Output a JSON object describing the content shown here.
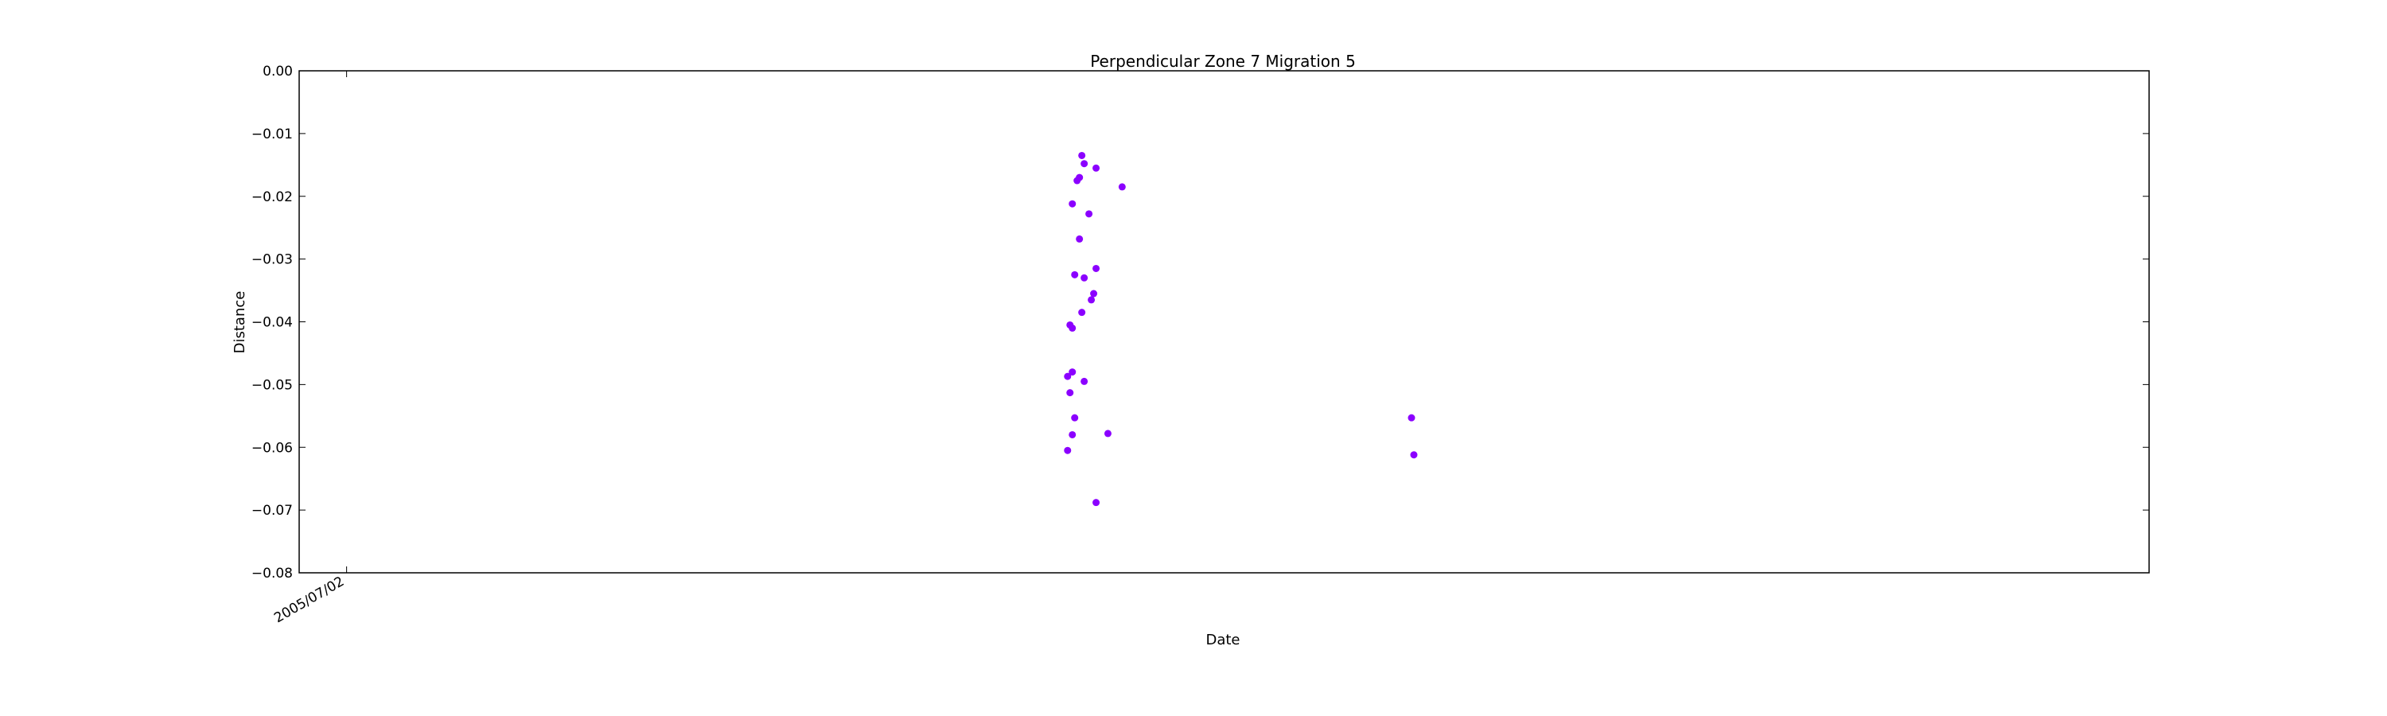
{
  "chart_data": {
    "type": "scatter",
    "title": "Perpendicular Zone 7 Migration 5",
    "xlabel": "Date",
    "ylabel": "Distance",
    "ylim": [
      -0.08,
      0.0
    ],
    "yticks": [
      "0.00",
      "−0.01",
      "−0.02",
      "−0.03",
      "−0.04",
      "−0.05",
      "−0.06",
      "−0.07",
      "−0.08"
    ],
    "ytick_values": [
      0.0,
      -0.01,
      -0.02,
      -0.03,
      -0.04,
      -0.05,
      -0.06,
      -0.07,
      -0.08
    ],
    "xlim": [
      "2005-06-12",
      "2007-08-01"
    ],
    "xticks": [
      {
        "value": "2005-07-02",
        "label": "2005/07/02"
      }
    ],
    "grid": false,
    "marker_color": "#8b00ff",
    "series": [
      {
        "points": [
          {
            "x": "2006-05-08",
            "y": -0.0135
          },
          {
            "x": "2006-05-09",
            "y": -0.0148
          },
          {
            "x": "2006-05-14",
            "y": -0.0155
          },
          {
            "x": "2006-05-07",
            "y": -0.017
          },
          {
            "x": "2006-05-06",
            "y": -0.0175
          },
          {
            "x": "2006-05-25",
            "y": -0.0185
          },
          {
            "x": "2006-05-04",
            "y": -0.0212
          },
          {
            "x": "2006-05-11",
            "y": -0.0228
          },
          {
            "x": "2006-05-07",
            "y": -0.0268
          },
          {
            "x": "2006-05-14",
            "y": -0.0315
          },
          {
            "x": "2006-05-05",
            "y": -0.0325
          },
          {
            "x": "2006-05-09",
            "y": -0.033
          },
          {
            "x": "2006-05-13",
            "y": -0.0355
          },
          {
            "x": "2006-05-12",
            "y": -0.0365
          },
          {
            "x": "2006-05-08",
            "y": -0.0385
          },
          {
            "x": "2006-05-03",
            "y": -0.0405
          },
          {
            "x": "2006-05-04",
            "y": -0.041
          },
          {
            "x": "2006-05-04",
            "y": -0.048
          },
          {
            "x": "2006-05-02",
            "y": -0.0487
          },
          {
            "x": "2006-05-09",
            "y": -0.0495
          },
          {
            "x": "2006-05-03",
            "y": -0.0513
          },
          {
            "x": "2006-05-05",
            "y": -0.0553
          },
          {
            "x": "2006-05-19",
            "y": -0.0578
          },
          {
            "x": "2006-05-04",
            "y": -0.058
          },
          {
            "x": "2006-05-02",
            "y": -0.0605
          },
          {
            "x": "2006-05-14",
            "y": -0.0688
          },
          {
            "x": "2006-09-24",
            "y": -0.0553
          },
          {
            "x": "2006-09-25",
            "y": -0.0612
          }
        ]
      }
    ]
  }
}
